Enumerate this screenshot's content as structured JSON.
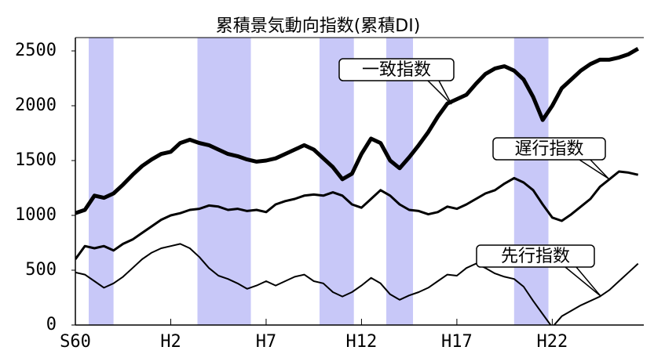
{
  "chart_data": {
    "type": "line",
    "title": "累積景気動向指数(累積DI)",
    "x": [
      1985,
      1985.5,
      1986,
      1986.5,
      1987,
      1987.5,
      1988,
      1988.5,
      1989,
      1989.5,
      1990,
      1990.5,
      1991,
      1991.5,
      1992,
      1992.5,
      1993,
      1993.5,
      1994,
      1994.5,
      1995,
      1995.5,
      1996,
      1996.5,
      1997,
      1997.5,
      1998,
      1998.5,
      1999,
      1999.5,
      2000,
      2000.5,
      2001,
      2001.5,
      2002,
      2002.5,
      2003,
      2003.5,
      2004,
      2004.5,
      2005,
      2005.5,
      2006,
      2006.5,
      2007,
      2007.5,
      2008,
      2008.5,
      2009,
      2009.5,
      2010,
      2010.5,
      2011,
      2011.5,
      2012,
      2012.5,
      2013,
      2013.5,
      2014,
      2014.5
    ],
    "series": [
      {
        "name": "一致指数",
        "color": "#000000",
        "width": 5,
        "values": [
          1020,
          1050,
          1180,
          1160,
          1200,
          1280,
          1370,
          1450,
          1510,
          1560,
          1580,
          1660,
          1690,
          1660,
          1640,
          1600,
          1560,
          1540,
          1510,
          1490,
          1500,
          1520,
          1560,
          1600,
          1640,
          1600,
          1520,
          1440,
          1330,
          1380,
          1560,
          1700,
          1660,
          1500,
          1430,
          1530,
          1640,
          1760,
          1900,
          2020,
          2060,
          2100,
          2200,
          2290,
          2340,
          2360,
          2320,
          2240,
          2080,
          1870,
          2000,
          2160,
          2240,
          2320,
          2380,
          2420,
          2420,
          2440,
          2470,
          2520
        ]
      },
      {
        "name": "遅行指数",
        "color": "#000000",
        "width": 3,
        "values": [
          600,
          720,
          700,
          720,
          680,
          740,
          780,
          840,
          900,
          960,
          1000,
          1020,
          1050,
          1060,
          1090,
          1080,
          1050,
          1060,
          1040,
          1050,
          1030,
          1100,
          1130,
          1150,
          1180,
          1190,
          1180,
          1210,
          1180,
          1100,
          1070,
          1150,
          1230,
          1180,
          1100,
          1050,
          1040,
          1010,
          1030,
          1080,
          1060,
          1100,
          1150,
          1200,
          1230,
          1290,
          1340,
          1300,
          1230,
          1100,
          980,
          950,
          1010,
          1080,
          1150,
          1260,
          1330,
          1400,
          1390,
          1370
        ]
      },
      {
        "name": "先行指数",
        "color": "#000000",
        "width": 2,
        "values": [
          480,
          460,
          400,
          340,
          380,
          440,
          520,
          600,
          660,
          700,
          720,
          740,
          700,
          620,
          520,
          450,
          420,
          380,
          330,
          360,
          400,
          360,
          400,
          440,
          460,
          400,
          380,
          300,
          260,
          300,
          360,
          430,
          380,
          280,
          230,
          270,
          300,
          340,
          400,
          460,
          450,
          520,
          560,
          520,
          470,
          440,
          420,
          350,
          220,
          100,
          -20,
          80,
          130,
          180,
          220,
          260,
          320,
          400,
          480,
          560
        ]
      }
    ],
    "recessions": [
      [
        1985.7,
        1987.0
      ],
      [
        1991.4,
        1994.2
      ],
      [
        1997.8,
        1999.6
      ],
      [
        2001.3,
        2002.7
      ],
      [
        2008.0,
        2009.8
      ]
    ],
    "recession_color": "#c8c8f8",
    "xlim": [
      1985,
      2014.8
    ],
    "xticks": [
      {
        "value": 1985,
        "label": "S60"
      },
      {
        "value": 1990,
        "label": "H2"
      },
      {
        "value": 1995,
        "label": "H7"
      },
      {
        "value": 2000,
        "label": "H12"
      },
      {
        "value": 2005,
        "label": "H17"
      },
      {
        "value": 2010,
        "label": "H22"
      }
    ],
    "ylim": [
      0,
      2500
    ],
    "yticks": [
      0,
      500,
      1000,
      1500,
      2000,
      2500
    ]
  }
}
